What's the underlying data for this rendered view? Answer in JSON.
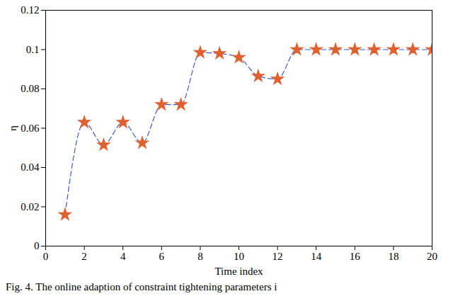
{
  "chart_data": {
    "type": "line",
    "x_label": "Time index",
    "y_label": "η",
    "caption": "Fig. 4. The online adaption of constraint tightening parameters i",
    "x": [
      1,
      2,
      3,
      4,
      5,
      6,
      7,
      8,
      9,
      10,
      11,
      12,
      13,
      14,
      15,
      16,
      17,
      18,
      19,
      20
    ],
    "series": [
      {
        "name": "η",
        "color": "#3b5bd6",
        "marker": "star",
        "marker_color": "#e0602f",
        "line_style": "dashed",
        "values": [
          0.016,
          0.063,
          0.0515,
          0.063,
          0.0525,
          0.072,
          0.072,
          0.0985,
          0.098,
          0.096,
          0.0865,
          0.085,
          0.1,
          0.1,
          0.1,
          0.1,
          0.1,
          0.1,
          0.1,
          0.1
        ]
      }
    ],
    "xlim": [
      0,
      20
    ],
    "xticks": [
      0,
      2,
      4,
      6,
      8,
      10,
      12,
      14,
      16,
      18,
      20
    ],
    "ylim": [
      0,
      0.12
    ],
    "yticks": [
      0,
      0.02,
      0.04,
      0.06,
      0.08,
      0.1,
      0.12
    ],
    "grid": false
  }
}
